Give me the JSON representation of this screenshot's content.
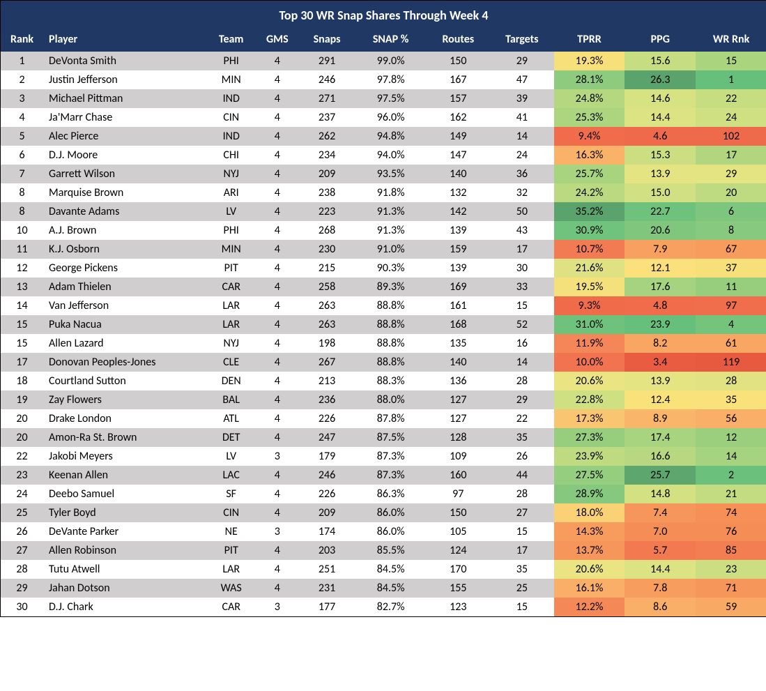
{
  "title": "Top 30 WR Snap Shares Through Week 4",
  "headers": {
    "rank": "Rank",
    "player": "Player",
    "team": "Team",
    "gms": "GMS",
    "snaps": "Snaps",
    "snappct": "SNAP %",
    "routes": "Routes",
    "targets": "Targets",
    "tprr": "TPRR",
    "ppg": "PPG",
    "wrrnk": "WR Rnk"
  },
  "colors": {
    "header_bg": "#1f3864",
    "header_fg": "#ffffff",
    "row_odd": "#d0cece",
    "row_even": "#ffffff"
  },
  "rows": [
    {
      "rank": "1",
      "player": "DeVonta Smith",
      "team": "PHI",
      "gms": "4",
      "snaps": "291",
      "snappct": "99.0%",
      "routes": "150",
      "targets": "29",
      "tprr": "19.3%",
      "ppg": "15.6",
      "wrrnk": "15",
      "tprr_bg": "#f7e07a",
      "ppg_bg": "#c7dd82",
      "wrrnk_bg": "#abd47f"
    },
    {
      "rank": "2",
      "player": "Justin Jefferson",
      "team": "MIN",
      "gms": "4",
      "snaps": "246",
      "snappct": "97.8%",
      "routes": "167",
      "targets": "47",
      "tprr": "28.1%",
      "ppg": "26.3",
      "wrrnk": "1",
      "tprr_bg": "#8ecb7e",
      "ppg_bg": "#5aa36c",
      "wrrnk_bg": "#66c07c"
    },
    {
      "rank": "3",
      "player": "Michael Pittman",
      "team": "IND",
      "gms": "4",
      "snaps": "271",
      "snappct": "97.5%",
      "routes": "157",
      "targets": "39",
      "tprr": "24.8%",
      "ppg": "14.6",
      "wrrnk": "22",
      "tprr_bg": "#b4d780",
      "ppg_bg": "#d7e283",
      "wrrnk_bg": "#c7dd82"
    },
    {
      "rank": "4",
      "player": "Ja'Marr Chase",
      "team": "CIN",
      "gms": "4",
      "snaps": "237",
      "snappct": "96.0%",
      "routes": "162",
      "targets": "41",
      "tprr": "25.3%",
      "ppg": "14.4",
      "wrrnk": "24",
      "tprr_bg": "#add57f",
      "ppg_bg": "#dbe383",
      "wrrnk_bg": "#cfe082"
    },
    {
      "rank": "5",
      "player": "Alec Pierce",
      "team": "IND",
      "gms": "4",
      "snaps": "262",
      "snappct": "94.8%",
      "routes": "149",
      "targets": "14",
      "tprr": "9.4%",
      "ppg": "4.6",
      "wrrnk": "102",
      "tprr_bg": "#f16c4b",
      "ppg_bg": "#ef6a4a",
      "wrrnk_bg": "#ee6a4a"
    },
    {
      "rank": "6",
      "player": "D.J. Moore",
      "team": "CHI",
      "gms": "4",
      "snaps": "234",
      "snappct": "94.0%",
      "routes": "147",
      "targets": "24",
      "tprr": "16.3%",
      "ppg": "15.3",
      "wrrnk": "17",
      "tprr_bg": "#f9b268",
      "ppg_bg": "#cbdf82",
      "wrrnk_bg": "#b2d67f"
    },
    {
      "rank": "7",
      "player": "Garrett Wilson",
      "team": "NYJ",
      "gms": "4",
      "snaps": "209",
      "snappct": "93.5%",
      "routes": "140",
      "targets": "36",
      "tprr": "25.7%",
      "ppg": "13.9",
      "wrrnk": "29",
      "tprr_bg": "#a8d37f",
      "ppg_bg": "#e5e483",
      "wrrnk_bg": "#e5e483"
    },
    {
      "rank": "8",
      "player": "Marquise Brown",
      "team": "ARI",
      "gms": "4",
      "snaps": "238",
      "snappct": "91.8%",
      "routes": "132",
      "targets": "32",
      "tprr": "24.2%",
      "ppg": "15.0",
      "wrrnk": "20",
      "tprr_bg": "#bad981",
      "ppg_bg": "#d0e082",
      "wrrnk_bg": "#bfdb81"
    },
    {
      "rank": "8",
      "player": "Davante Adams",
      "team": "LV",
      "gms": "4",
      "snaps": "223",
      "snappct": "91.3%",
      "routes": "142",
      "targets": "50",
      "tprr": "35.2%",
      "ppg": "22.7",
      "wrrnk": "6",
      "tprr_bg": "#5aa36c",
      "ppg_bg": "#6fc27c",
      "wrrnk_bg": "#7ec67d"
    },
    {
      "rank": "10",
      "player": "A.J. Brown",
      "team": "PHI",
      "gms": "4",
      "snaps": "268",
      "snappct": "91.3%",
      "routes": "139",
      "targets": "43",
      "tprr": "30.9%",
      "ppg": "20.6",
      "wrrnk": "8",
      "tprr_bg": "#70c37c",
      "ppg_bg": "#80c77d",
      "wrrnk_bg": "#87c97e"
    },
    {
      "rank": "11",
      "player": "K.J. Osborn",
      "team": "MIN",
      "gms": "4",
      "snaps": "230",
      "snappct": "91.0%",
      "routes": "159",
      "targets": "17",
      "tprr": "10.7%",
      "ppg": "7.9",
      "wrrnk": "67",
      "tprr_bg": "#f37b53",
      "ppg_bg": "#f8a05f",
      "wrrnk_bg": "#f79c5d"
    },
    {
      "rank": "12",
      "player": "George Pickens",
      "team": "PIT",
      "gms": "4",
      "snaps": "215",
      "snappct": "90.3%",
      "routes": "139",
      "targets": "30",
      "tprr": "21.6%",
      "ppg": "12.1",
      "wrrnk": "37",
      "tprr_bg": "#dfe283",
      "ppg_bg": "#fbe07b",
      "wrrnk_bg": "#f7e07a"
    },
    {
      "rank": "13",
      "player": "Adam Thielen",
      "team": "CAR",
      "gms": "4",
      "snaps": "258",
      "snappct": "89.3%",
      "routes": "169",
      "targets": "33",
      "tprr": "19.5%",
      "ppg": "17.6",
      "wrrnk": "11",
      "tprr_bg": "#f5e17b",
      "ppg_bg": "#a6d37f",
      "wrrnk_bg": "#96ce7e"
    },
    {
      "rank": "14",
      "player": "Van Jefferson",
      "team": "LAR",
      "gms": "4",
      "snaps": "263",
      "snappct": "88.8%",
      "routes": "161",
      "targets": "15",
      "tprr": "9.3%",
      "ppg": "4.8",
      "wrrnk": "97",
      "tprr_bg": "#f06b4a",
      "ppg_bg": "#f06c4b",
      "wrrnk_bg": "#f06e4c"
    },
    {
      "rank": "15",
      "player": "Puka Nacua",
      "team": "LAR",
      "gms": "4",
      "snaps": "263",
      "snappct": "88.8%",
      "routes": "168",
      "targets": "52",
      "tprr": "31.0%",
      "ppg": "23.9",
      "wrrnk": "4",
      "tprr_bg": "#6fc27c",
      "ppg_bg": "#66c07c",
      "wrrnk_bg": "#74c47c"
    },
    {
      "rank": "15",
      "player": "Allen Lazard",
      "team": "NYJ",
      "gms": "4",
      "snaps": "198",
      "snappct": "88.8%",
      "routes": "135",
      "targets": "16",
      "tprr": "11.9%",
      "ppg": "8.2",
      "wrrnk": "61",
      "tprr_bg": "#f48657",
      "ppg_bg": "#f8a661",
      "wrrnk_bg": "#f8a661"
    },
    {
      "rank": "17",
      "player": "Donovan Peoples-Jones",
      "team": "CLE",
      "gms": "4",
      "snaps": "267",
      "snappct": "88.8%",
      "routes": "140",
      "targets": "14",
      "tprr": "10.0%",
      "ppg": "3.4",
      "wrrnk": "119",
      "tprr_bg": "#f2734f",
      "ppg_bg": "#ea5c42",
      "wrrnk_bg": "#e85a40"
    },
    {
      "rank": "18",
      "player": "Courtland Sutton",
      "team": "DEN",
      "gms": "4",
      "snaps": "213",
      "snappct": "88.3%",
      "routes": "136",
      "targets": "28",
      "tprr": "20.6%",
      "ppg": "13.9",
      "wrrnk": "28",
      "tprr_bg": "#eae483",
      "ppg_bg": "#e5e483",
      "wrrnk_bg": "#e1e383"
    },
    {
      "rank": "19",
      "player": "Zay Flowers",
      "team": "BAL",
      "gms": "4",
      "snaps": "236",
      "snappct": "88.0%",
      "routes": "127",
      "targets": "29",
      "tprr": "22.8%",
      "ppg": "12.4",
      "wrrnk": "35",
      "tprr_bg": "#cfe082",
      "ppg_bg": "#fae27b",
      "wrrnk_bg": "#fae27b"
    },
    {
      "rank": "20",
      "player": "Drake London",
      "team": "ATL",
      "gms": "4",
      "snaps": "226",
      "snappct": "87.8%",
      "routes": "127",
      "targets": "22",
      "tprr": "17.3%",
      "ppg": "8.9",
      "wrrnk": "56",
      "tprr_bg": "#fac570",
      "ppg_bg": "#f9b56a",
      "wrrnk_bg": "#f9af67"
    },
    {
      "rank": "20",
      "player": "Amon-Ra St. Brown",
      "team": "DET",
      "gms": "4",
      "snaps": "247",
      "snappct": "87.5%",
      "routes": "128",
      "targets": "35",
      "tprr": "27.3%",
      "ppg": "17.4",
      "wrrnk": "12",
      "tprr_bg": "#97ce7e",
      "ppg_bg": "#a9d47f",
      "wrrnk_bg": "#9bcf7e"
    },
    {
      "rank": "22",
      "player": "Jakobi Meyers",
      "team": "LV",
      "gms": "3",
      "snaps": "179",
      "snappct": "87.3%",
      "routes": "109",
      "targets": "26",
      "tprr": "23.9%",
      "ppg": "16.6",
      "wrrnk": "14",
      "tprr_bg": "#bfdb81",
      "ppg_bg": "#b7d880",
      "wrrnk_bg": "#a6d37f"
    },
    {
      "rank": "23",
      "player": "Keenan Allen",
      "team": "LAC",
      "gms": "4",
      "snaps": "246",
      "snappct": "87.3%",
      "routes": "160",
      "targets": "44",
      "tprr": "27.5%",
      "ppg": "25.7",
      "wrrnk": "2",
      "tprr_bg": "#94ce7e",
      "ppg_bg": "#5da66e",
      "wrrnk_bg": "#6bc17c"
    },
    {
      "rank": "24",
      "player": "Deebo Samuel",
      "team": "SF",
      "gms": "4",
      "snaps": "226",
      "snappct": "86.3%",
      "routes": "97",
      "targets": "28",
      "tprr": "28.9%",
      "ppg": "14.8",
      "wrrnk": "21",
      "tprr_bg": "#86c97e",
      "ppg_bg": "#d4e183",
      "wrrnk_bg": "#c3dc81"
    },
    {
      "rank": "25",
      "player": "Tyler Boyd",
      "team": "CIN",
      "gms": "4",
      "snaps": "209",
      "snappct": "86.0%",
      "routes": "150",
      "targets": "27",
      "tprr": "18.0%",
      "ppg": "7.4",
      "wrrnk": "74",
      "tprr_bg": "#fbd175",
      "ppg_bg": "#f6965a",
      "wrrnk_bg": "#f69057"
    },
    {
      "rank": "26",
      "player": "DeVante Parker",
      "team": "NE",
      "gms": "3",
      "snaps": "174",
      "snappct": "86.0%",
      "routes": "105",
      "targets": "15",
      "tprr": "14.3%",
      "ppg": "7.0",
      "wrrnk": "76",
      "tprr_bg": "#f79c5d",
      "ppg_bg": "#f58e56",
      "wrrnk_bg": "#f58d56"
    },
    {
      "rank": "27",
      "player": "Allen Robinson",
      "team": "PIT",
      "gms": "4",
      "snaps": "203",
      "snappct": "85.5%",
      "routes": "124",
      "targets": "17",
      "tprr": "13.7%",
      "ppg": "5.7",
      "wrrnk": "85",
      "tprr_bg": "#f6965a",
      "ppg_bg": "#f27950",
      "wrrnk_bg": "#f37e52"
    },
    {
      "rank": "28",
      "player": "Tutu Atwell",
      "team": "LAR",
      "gms": "4",
      "snaps": "251",
      "snappct": "84.5%",
      "routes": "170",
      "targets": "35",
      "tprr": "20.6%",
      "ppg": "14.4",
      "wrrnk": "23",
      "tprr_bg": "#eae483",
      "ppg_bg": "#dbe383",
      "wrrnk_bg": "#cbdf82"
    },
    {
      "rank": "29",
      "player": "Jahan Dotson",
      "team": "WAS",
      "gms": "4",
      "snaps": "231",
      "snappct": "84.5%",
      "routes": "155",
      "targets": "25",
      "tprr": "16.1%",
      "ppg": "7.8",
      "wrrnk": "71",
      "tprr_bg": "#f9af67",
      "ppg_bg": "#f79e5f",
      "wrrnk_bg": "#f6965a"
    },
    {
      "rank": "30",
      "player": "D.J. Chark",
      "team": "CAR",
      "gms": "3",
      "snaps": "177",
      "snappct": "82.7%",
      "routes": "123",
      "targets": "15",
      "tprr": "12.2%",
      "ppg": "8.6",
      "wrrnk": "59",
      "tprr_bg": "#f48957",
      "ppg_bg": "#f9af67",
      "wrrnk_bg": "#f8a964"
    }
  ]
}
